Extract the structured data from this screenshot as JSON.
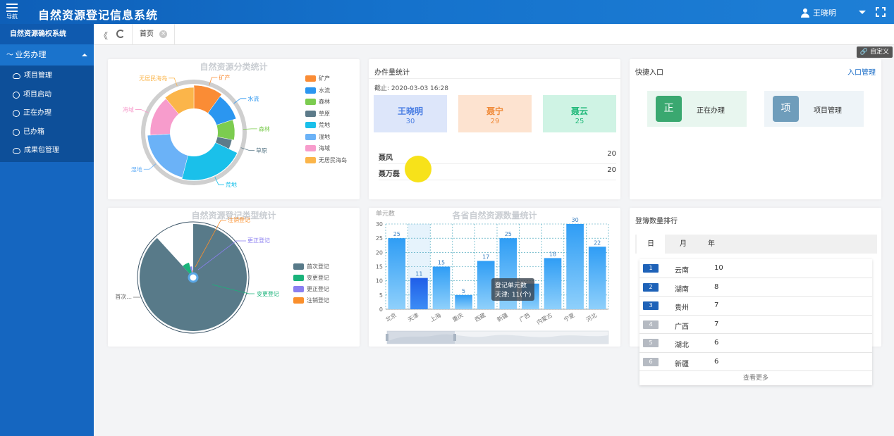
{
  "header": {
    "nav_label": "导航",
    "title": "自然资源登记信息系统",
    "user_name": "王晓明"
  },
  "sidebar": {
    "system_title": "自然资源确权系统",
    "group_label": "业务办理",
    "items": [
      {
        "label": "项目管理",
        "icon": "cloud-icon"
      },
      {
        "label": "项目启动",
        "icon": "circle-c-icon"
      },
      {
        "label": "正在办理",
        "icon": "circle-c-icon"
      },
      {
        "label": "已办箱",
        "icon": "circle-c-icon"
      },
      {
        "label": "成果包管理",
        "icon": "cloud-icon"
      }
    ]
  },
  "tabs": {
    "home_label": "首页",
    "close_glyph": "×"
  },
  "customize_label": "自定义",
  "pie1": {
    "title": "自然资源分类统计",
    "slices": [
      {
        "name": "矿产",
        "value": 10,
        "color": "#fa8c35"
      },
      {
        "name": "水流",
        "value": 10,
        "color": "#2b96f0"
      },
      {
        "name": "森林",
        "value": 8,
        "color": "#7ccc50"
      },
      {
        "name": "草原",
        "value": 4,
        "color": "#5d7b8a"
      },
      {
        "name": "荒地",
        "value": 22,
        "color": "#1ac0ea"
      },
      {
        "name": "湿地",
        "value": 20,
        "color": "#6bb2f7"
      },
      {
        "name": "海域",
        "value": 15,
        "color": "#f79ccc"
      },
      {
        "name": "无居民海岛",
        "value": 11,
        "color": "#fbb54a"
      }
    ]
  },
  "stats": {
    "title": "办件量统计",
    "date_label": "截止: 2020-03-03 16:28",
    "boxes": [
      {
        "name": "王晓明",
        "value": "30",
        "bg": "#dde6fa",
        "color": "#4a7ee3"
      },
      {
        "name": "聂宁",
        "value": "29",
        "bg": "#fde3d0",
        "color": "#f08b3a"
      },
      {
        "name": "聂云",
        "value": "25",
        "bg": "#cff3e4",
        "color": "#21b97a"
      }
    ],
    "rows": [
      {
        "name": "聂风",
        "value": "20"
      },
      {
        "name": "聂万磊",
        "value": "20"
      }
    ]
  },
  "quick": {
    "title": "快捷入口",
    "link_label": "入口管理",
    "tiles": [
      {
        "glyph": "正",
        "label": "正在办理",
        "bg": "#e8f6ef",
        "sq": "#3aa870"
      },
      {
        "glyph": "项",
        "label": "项目管理",
        "bg": "#eef4f8",
        "sq": "#6f9dbb"
      }
    ]
  },
  "pie2": {
    "title": "自然资源登记类型统计",
    "slices": [
      {
        "name": "首次登记",
        "label": "首次...",
        "value": 60,
        "color": "#587a89"
      },
      {
        "name": "变更登记",
        "label": "变更登记",
        "value": 5,
        "color": "#1ab37a"
      },
      {
        "name": "更正登记",
        "label": "更正登记",
        "value": 2,
        "color": "#8b7ff0"
      },
      {
        "name": "注销登记",
        "label": "注销登记",
        "value": 1,
        "color": "#fa8f2c"
      }
    ]
  },
  "chart_data": {
    "type": "bar",
    "title": "各省自然资源数量统计",
    "ylabel": "单元数",
    "ylim": [
      0,
      30
    ],
    "yticks": [
      "0",
      "5",
      "10",
      "15",
      "20",
      "25",
      "30"
    ],
    "categories": [
      "北京",
      "天津",
      "上海",
      "重庆",
      "西藏",
      "新疆",
      "广西",
      "内蒙古",
      "宁夏",
      "河北"
    ],
    "values": [
      25,
      11,
      15,
      5,
      17,
      25,
      9,
      18,
      30,
      22
    ],
    "value_labels": [
      "25",
      "11",
      "15",
      "5",
      "17",
      "25",
      "",
      "18",
      "30",
      "22"
    ],
    "highlight_index": 1,
    "tooltip": {
      "title": "登记单元数",
      "text": "天津: 11(个)"
    }
  },
  "ranking": {
    "title": "登簿数量排行",
    "tabs": [
      "日",
      "月",
      "年"
    ],
    "rows": [
      {
        "rank": "1",
        "name": "云南",
        "value": "10",
        "color": "#1e62b8"
      },
      {
        "rank": "2",
        "name": "湖南",
        "value": "8",
        "color": "#1e62b8"
      },
      {
        "rank": "3",
        "name": "贵州",
        "value": "7",
        "color": "#1e62b8"
      },
      {
        "rank": "4",
        "name": "广西",
        "value": "7",
        "color": "#b5bac2"
      },
      {
        "rank": "5",
        "name": "湖北",
        "value": "6",
        "color": "#b5bac2"
      },
      {
        "rank": "6",
        "name": "新疆",
        "value": "6",
        "color": "#b5bac2"
      }
    ],
    "more_label": "查看更多"
  }
}
